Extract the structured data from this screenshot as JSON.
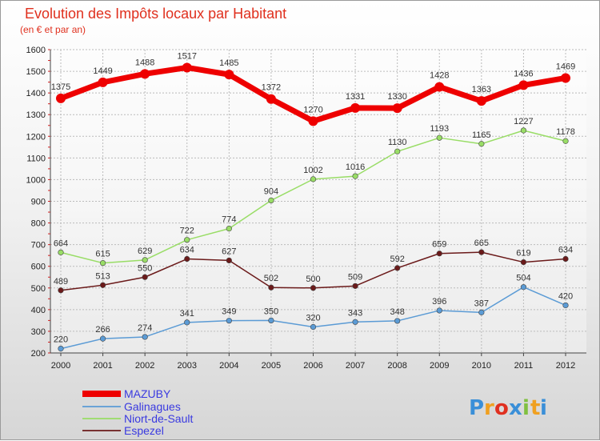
{
  "chart_data": {
    "type": "line",
    "title": "Evolution des Impôts locaux par Habitant",
    "subtitle": "(en € et par an)",
    "x": [
      "2000",
      "2001",
      "2002",
      "2003",
      "2004",
      "2005",
      "2006",
      "2007",
      "2008",
      "2009",
      "2010",
      "2011",
      "2012"
    ],
    "ylim": [
      200,
      1600
    ],
    "yticks": [
      200,
      300,
      400,
      500,
      600,
      700,
      800,
      900,
      1000,
      1100,
      1200,
      1300,
      1400,
      1500,
      1600
    ],
    "grid": true,
    "legend_position": "bottom-left",
    "series": [
      {
        "name": "MAZUBY",
        "color": "#ee0000",
        "values": [
          1375,
          1449,
          1488,
          1517,
          1485,
          1372,
          1270,
          1331,
          1330,
          1428,
          1363,
          1436,
          1469
        ]
      },
      {
        "name": "Galinagues",
        "color": "#5b9bd5",
        "values": [
          220,
          266,
          274,
          341,
          349,
          350,
          320,
          343,
          348,
          396,
          387,
          504,
          420
        ]
      },
      {
        "name": "Niort-de-Sault",
        "color": "#99dd66",
        "values": [
          664,
          615,
          629,
          722,
          774,
          904,
          1002,
          1016,
          1130,
          1193,
          1165,
          1227,
          1178
        ]
      },
      {
        "name": "Espezel",
        "color": "#6b1a1a",
        "values": [
          489,
          513,
          550,
          634,
          627,
          502,
          500,
          509,
          592,
          659,
          665,
          619,
          634
        ]
      }
    ]
  },
  "brand": {
    "letters": [
      "P",
      "r",
      "o",
      "x",
      "i",
      "t",
      "i"
    ],
    "colors": [
      "#3a8fd8",
      "#f0a020",
      "#e03020",
      "#3a8fd8",
      "#80c040",
      "#f0a020",
      "#3a8fd8"
    ]
  }
}
